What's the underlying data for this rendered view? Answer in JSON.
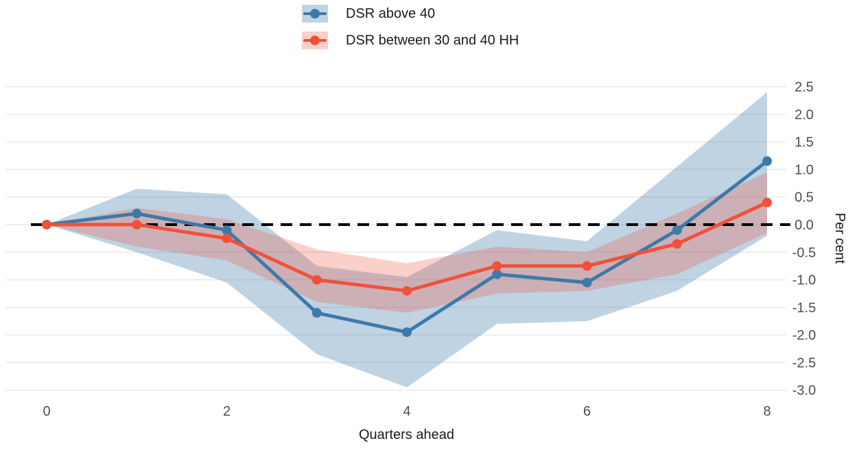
{
  "chart_data": {
    "type": "line",
    "title": "",
    "xlabel": "Quarters ahead",
    "ylabel": "Per cent",
    "x": [
      0,
      1,
      2,
      3,
      4,
      5,
      6,
      7,
      8
    ],
    "x_ticks": [
      "0",
      "2",
      "4",
      "6",
      "8"
    ],
    "y_ticks": [
      "2.5",
      "2.0",
      "1.5",
      "1.0",
      "0.5",
      "0.0",
      "-0.5",
      "-1.0",
      "-1.5",
      "-2.0",
      "-2.5",
      "-3.0"
    ],
    "xlim": [
      0,
      8
    ],
    "ylim": [
      -3.0,
      2.5
    ],
    "grid": "horizontal-only",
    "legend_position": "top-center",
    "zero_reference_line": {
      "value": 0.0,
      "style": "dashed",
      "color": "#000000"
    },
    "gridline_color": "#e8e8e8",
    "tick_label_color": "#4d4d4d",
    "axis_title_color": "#1a1a1a",
    "series": [
      {
        "name": "DSR above 40",
        "color": "#3d79a9",
        "band_fill": "rgba(61,121,169,0.33)",
        "values": [
          0.0,
          0.2,
          -0.1,
          -1.6,
          -1.95,
          -0.9,
          -1.05,
          -0.1,
          1.15
        ],
        "band_upper": [
          0.0,
          0.65,
          0.55,
          -0.75,
          -0.95,
          -0.1,
          -0.3,
          1.05,
          2.4
        ],
        "band_lower": [
          0.0,
          -0.5,
          -1.05,
          -2.35,
          -2.95,
          -1.8,
          -1.75,
          -1.2,
          -0.2
        ]
      },
      {
        "name": "DSR between 30 and 40 HH",
        "color": "#f2503a",
        "band_fill": "rgba(242,80,58,0.27)",
        "values": [
          0.0,
          0.0,
          -0.25,
          -1.0,
          -1.2,
          -0.75,
          -0.75,
          -0.35,
          0.4
        ],
        "band_upper": [
          0.0,
          0.3,
          0.1,
          -0.45,
          -0.7,
          -0.4,
          -0.5,
          0.2,
          0.95
        ],
        "band_lower": [
          0.0,
          -0.4,
          -0.65,
          -1.4,
          -1.6,
          -1.25,
          -1.2,
          -0.9,
          -0.15
        ]
      }
    ]
  }
}
